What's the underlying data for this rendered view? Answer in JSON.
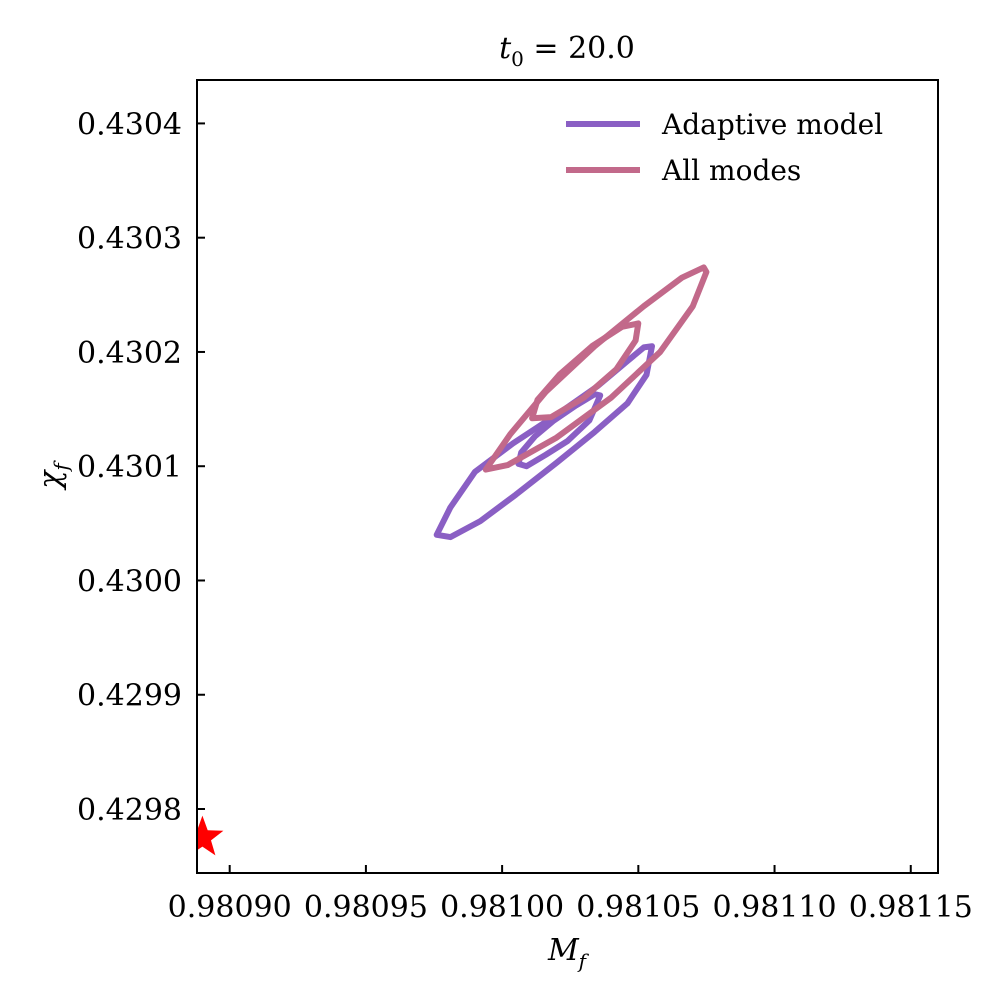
{
  "chart_data": {
    "type": "line",
    "title_main": "t",
    "title_sub": "0",
    "title_rest": " = 20.0",
    "xlabel_main": "M",
    "xlabel_sub": "f",
    "ylabel_main": "χ",
    "ylabel_sub": "f",
    "xlim": [
      0.980888,
      0.98116
    ],
    "ylim": [
      0.429744,
      0.430438
    ],
    "x_ticks": [
      {
        "value": 0.9809,
        "label": "0.98090"
      },
      {
        "value": 0.98095,
        "label": "0.98095"
      },
      {
        "value": 0.981,
        "label": "0.98100"
      },
      {
        "value": 0.98105,
        "label": "0.98105"
      },
      {
        "value": 0.9811,
        "label": "0.98110"
      },
      {
        "value": 0.98115,
        "label": "0.98115"
      }
    ],
    "y_ticks": [
      {
        "value": 0.4298,
        "label": "0.4298"
      },
      {
        "value": 0.4299,
        "label": "0.4299"
      },
      {
        "value": 0.43,
        "label": "0.4300"
      },
      {
        "value": 0.4301,
        "label": "0.4301"
      },
      {
        "value": 0.4302,
        "label": "0.4302"
      },
      {
        "value": 0.4303,
        "label": "0.4303"
      },
      {
        "value": 0.4304,
        "label": "0.4304"
      }
    ],
    "legend_position": "top-right",
    "series": [
      {
        "name": "Adaptive model",
        "color": "#8a5fc4",
        "contours": [
          {
            "x": [
              0.980976,
              0.980981,
              0.980992,
              0.981005,
              0.98102,
              0.981034,
              0.981046,
              0.981053,
              0.981055,
              0.981052,
              0.981046,
              0.981035,
              0.98102,
              0.981004,
              0.98099,
              0.980981,
              0.980976
            ],
            "y": [
              0.43004,
              0.430038,
              0.430052,
              0.430075,
              0.430103,
              0.43013,
              0.430155,
              0.43018,
              0.430205,
              0.430204,
              0.430192,
              0.43017,
              0.430145,
              0.43012,
              0.430095,
              0.430064,
              0.43004
            ]
          },
          {
            "x": [
              0.981006,
              0.981009,
              0.981016,
              0.981024,
              0.981032,
              0.981036,
              0.981034,
              0.981027,
              0.981019,
              0.981012,
              0.981007,
              0.981006
            ],
            "y": [
              0.430102,
              0.4301,
              0.43011,
              0.430122,
              0.43014,
              0.430162,
              0.430163,
              0.430153,
              0.43014,
              0.430126,
              0.430112,
              0.430102
            ]
          }
        ]
      },
      {
        "name": "All modes",
        "color": "#c2698a",
        "contours": [
          {
            "x": [
              0.980994,
              0.981002,
              0.98102,
              0.98104,
              0.981058,
              0.98107,
              0.981075,
              0.981074,
              0.981066,
              0.981052,
              0.981034,
              0.981016,
              0.981003,
              0.980994
            ],
            "y": [
              0.430097,
              0.430101,
              0.430125,
              0.43016,
              0.4302,
              0.43024,
              0.43027,
              0.430274,
              0.430265,
              0.43024,
              0.430205,
              0.430165,
              0.430128,
              0.430097
            ]
          },
          {
            "x": [
              0.981011,
              0.981018,
              0.98103,
              0.981042,
              0.981049,
              0.98105,
              0.981044,
              0.981033,
              0.981021,
              0.981013,
              0.981011
            ],
            "y": [
              0.430142,
              0.430143,
              0.43016,
              0.430185,
              0.43021,
              0.430225,
              0.430222,
              0.430205,
              0.43018,
              0.430158,
              0.430142
            ]
          }
        ]
      }
    ],
    "marker": {
      "type": "star",
      "color": "#ff0000",
      "x": 0.98089,
      "y": 0.429775
    }
  }
}
